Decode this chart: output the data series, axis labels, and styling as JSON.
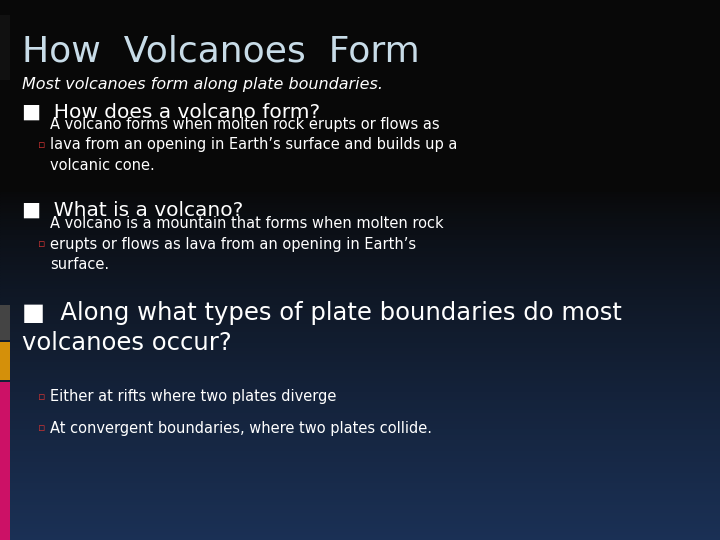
{
  "title": "How  Volcanoes  Form",
  "subtitle": "Most volcanoes form along plate boundaries.",
  "bg_top_color": "#080808",
  "bg_bottom_color": "#1a3055",
  "title_color": "#c8dce8",
  "text_color": "#ffffff",
  "bullet1_text": "How does a volcano form?",
  "bullet1_sub": "A volcano forms when molten rock erupts or flows as\nlava from an opening in Earth’s surface and builds up a\nvolcanic cone.",
  "bullet2_text": "What is a volcano?",
  "bullet2_sub": "A volcano is a mountain that forms when molten rock\nerupts or flows as lava from an opening in Earth’s\nsurface.",
  "bullet3_text": "Along what types of plate boundaries do most\nvolcanoes occur?",
  "bullet3_sub1": "Either at rifts where two plates diverge",
  "bullet3_sub2": "At convergent boundaries, where two plates collide.",
  "bar_dark": "#444444",
  "bar_gold": "#d4900a",
  "bar_pink": "#cc1166",
  "bullet_marker": "■",
  "sub_marker": "▫"
}
